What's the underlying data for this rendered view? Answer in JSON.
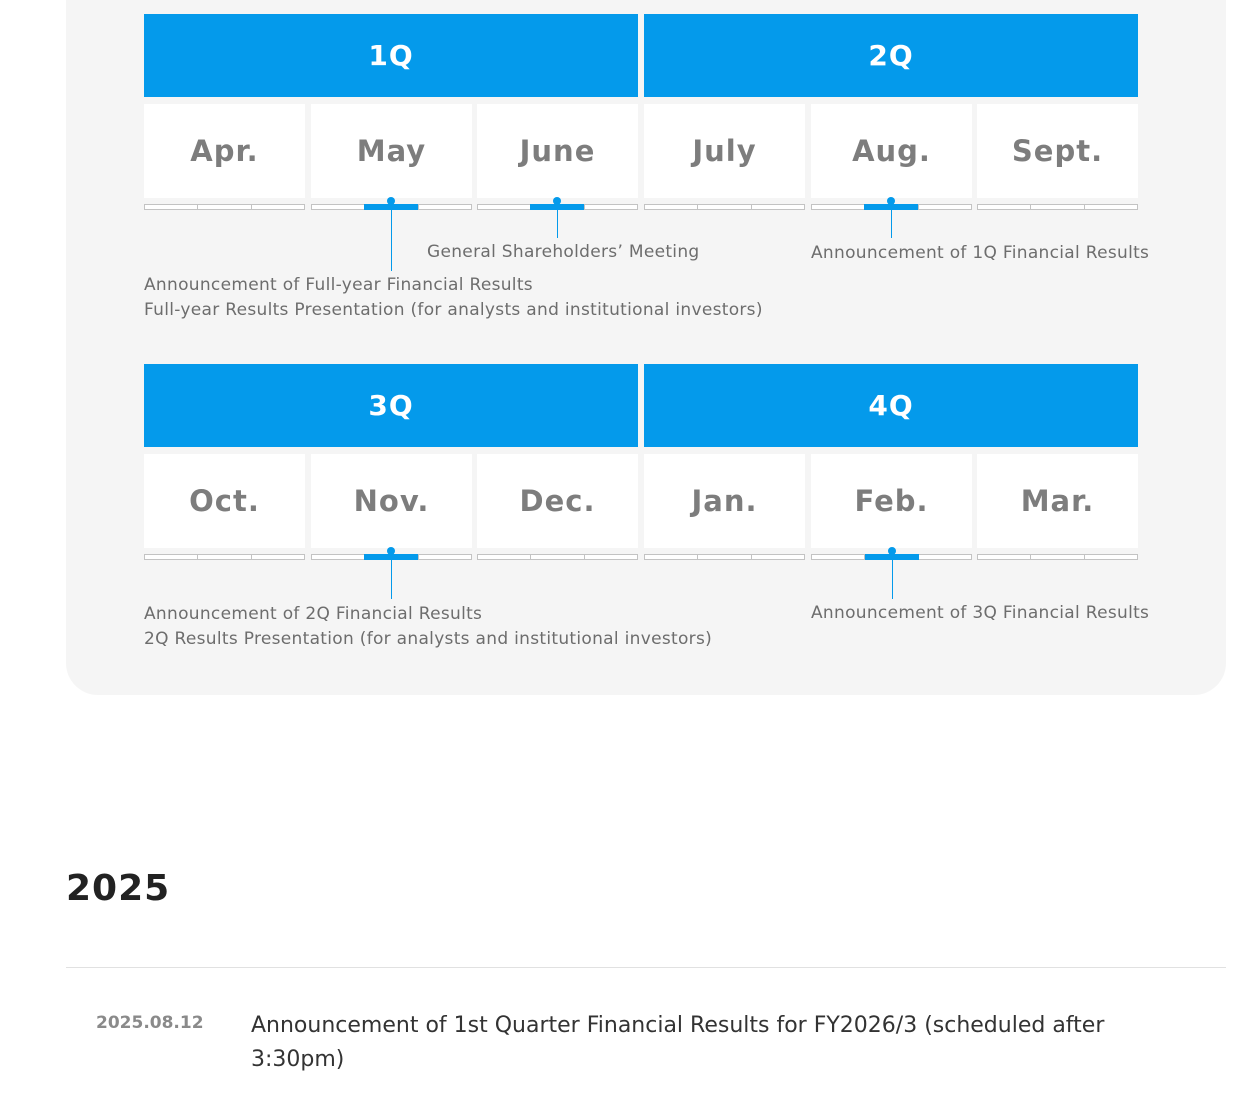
{
  "quarters": [
    "1Q",
    "2Q",
    "3Q",
    "4Q"
  ],
  "months": [
    "Apr.",
    "May",
    "June",
    "July",
    "Aug.",
    "Sept.",
    "Oct.",
    "Nov.",
    "Dec.",
    "Jan.",
    "Feb.",
    "Mar."
  ],
  "events": {
    "shareholders_meeting": "General Shareholders’ Meeting",
    "q1_results": "Announcement of 1Q Financial Results",
    "fy_results_line1": "Announcement of Full-year Financial Results",
    "fy_results_line2": "Full-year Results Presentation (for analysts and institutional investors)",
    "q2_results_line1": "Announcement of 2Q Financial Results",
    "q2_results_line2": "2Q Results Presentation (for analysts and institutional investors)",
    "q3_results": "Announcement of 3Q Financial Results"
  },
  "year_section": {
    "heading": "2025",
    "news": [
      {
        "date": "2025.08.12",
        "title": "Announcement of 1st Quarter Financial Results for FY2026/3 (scheduled after 3:30pm)"
      }
    ]
  },
  "colors": {
    "accent": "#049aeb",
    "panel_bg": "#f5f5f5",
    "month_text": "#7d7d7d"
  }
}
